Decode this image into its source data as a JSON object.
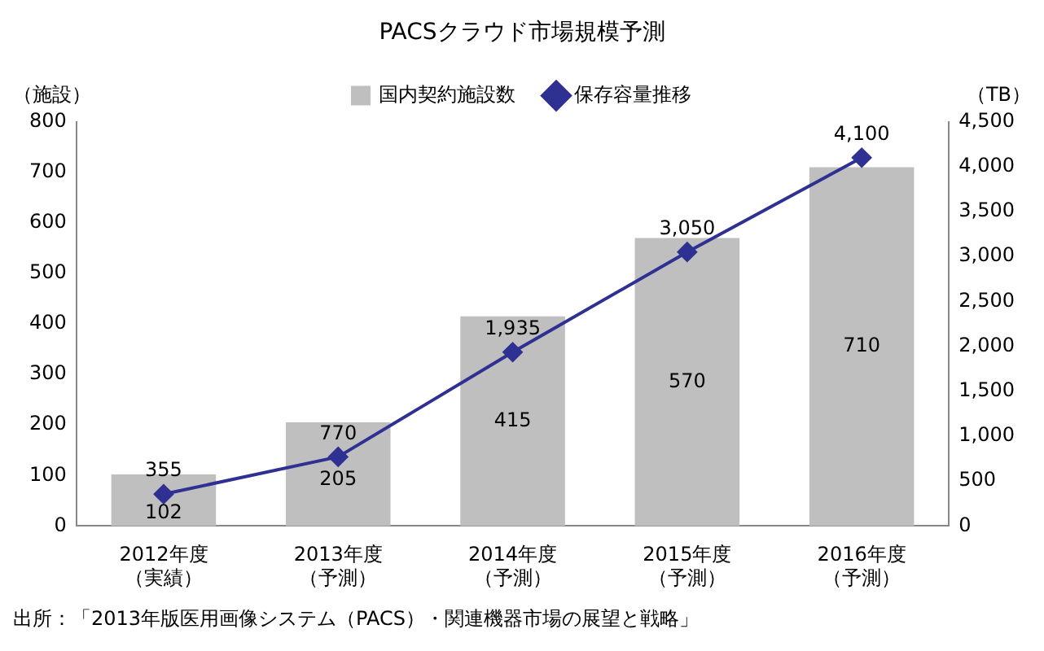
{
  "chart_data": {
    "type": "bar",
    "title": "PACSクラウド市場規模予測",
    "ylabel": "（施設）",
    "y2label": "（TB）",
    "categories": [
      "2012年度（実績）",
      "2013年度（予測）",
      "2014年度（予測）",
      "2015年度（予測）",
      "2016年度（予測）"
    ],
    "series": [
      {
        "name": "国内契約施設数",
        "color": "#bfbfbf",
        "values": [
          102,
          205,
          415,
          570,
          710
        ],
        "value_labels": [
          "102",
          "205",
          "415",
          "570",
          "710"
        ]
      },
      {
        "name": "保存容量推移",
        "type": "line",
        "axis": "y2",
        "color": "#2e3192",
        "marker": "diamond",
        "values": [
          355,
          770,
          1935,
          3050,
          4100
        ],
        "value_labels": [
          "355",
          "770",
          "1,935",
          "3,050",
          "4,100"
        ]
      }
    ],
    "ylim": [
      0,
      800
    ],
    "yticks": [
      0,
      100,
      200,
      300,
      400,
      500,
      600,
      700,
      800
    ],
    "y2lim": [
      0,
      4500
    ],
    "y2ticks": [
      0,
      500,
      {
        "value": 1000,
        "label": "1,000"
      },
      {
        "value": 1500,
        "label": "1,500"
      },
      {
        "value": 2000,
        "label": "2,000"
      },
      {
        "value": 2500,
        "label": "2,500"
      },
      {
        "value": 3000,
        "label": "3,000"
      },
      {
        "value": 3500,
        "label": "3,500"
      },
      {
        "value": 4000,
        "label": "4,000"
      },
      {
        "value": 4500,
        "label": "4,500"
      }
    ],
    "grid": false,
    "legend": "top",
    "annotations": [
      "出所：「2013年版医用画像システム（PACS）・関連機器市場の展望と戦略」"
    ]
  }
}
